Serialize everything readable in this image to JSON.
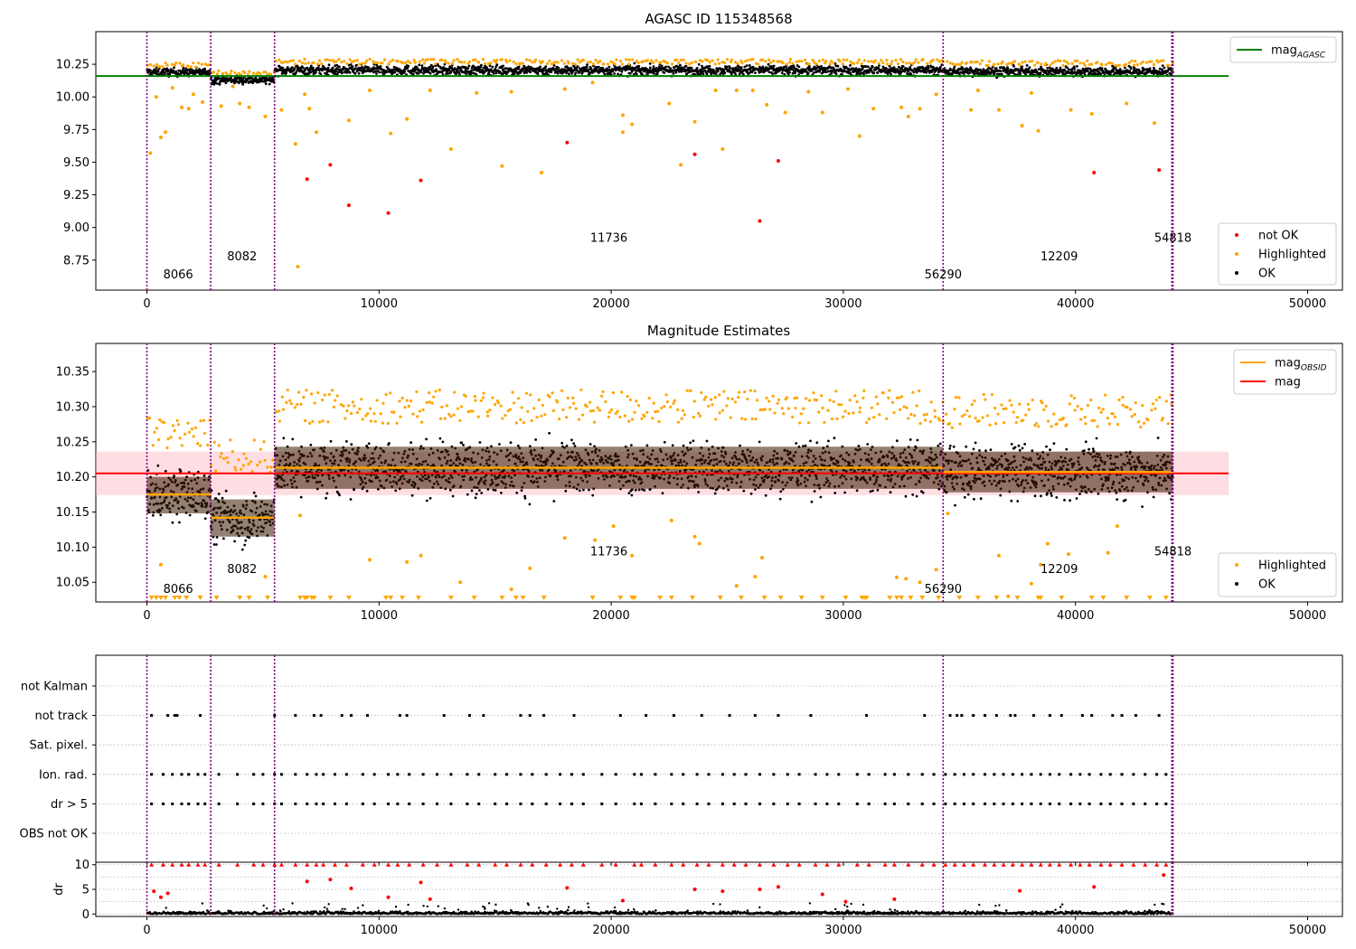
{
  "figure": {
    "title_top": "AGASC ID 115348568",
    "title_mid": "Magnitude Estimates"
  },
  "colors": {
    "ok": "#000000",
    "highlighted": "#ffa500",
    "not_ok": "#ff0000",
    "agasc_line": "#008000",
    "mag_line": "#ff0000",
    "obsid_line": "#ffa500",
    "obsid_boundary": "#800080",
    "grid": "#b0b0b0",
    "band": "#ffb6c1"
  },
  "chart_data": [
    {
      "type": "scatter",
      "title": "AGASC ID 115348568",
      "xlim": [
        -2200,
        51500
      ],
      "ylim": [
        8.52,
        10.5
      ],
      "x_ticks": [
        0,
        10000,
        20000,
        30000,
        40000,
        50000
      ],
      "y_ticks": [
        8.75,
        9.0,
        9.25,
        9.5,
        9.75,
        10.0,
        10.25
      ],
      "y_tick_labels": [
        "8.75",
        "9.00",
        "9.25",
        "9.50",
        "9.75",
        "10.00",
        "10.25"
      ],
      "mag_agasc": 10.16,
      "obsid_boundaries": [
        0,
        2750,
        5500,
        34300,
        44150,
        44200
      ],
      "obsid_labels": [
        {
          "text": "8066",
          "x": 1350,
          "y": 8.61
        },
        {
          "text": "8082",
          "x": 4100,
          "y": 8.75
        },
        {
          "text": "11736",
          "x": 19900,
          "y": 8.89
        },
        {
          "text": "56290",
          "x": 34300,
          "y": 8.61
        },
        {
          "text": "12209",
          "x": 39300,
          "y": 8.75
        },
        {
          "text": "54818",
          "x": 44200,
          "y": 8.89
        }
      ],
      "segments": [
        {
          "x0": 0,
          "x1": 2750,
          "center": 10.19,
          "spread": 0.025
        },
        {
          "x0": 2750,
          "x1": 5500,
          "center": 10.13,
          "spread": 0.025
        },
        {
          "x0": 5500,
          "x1": 34300,
          "center": 10.205,
          "spread": 0.03
        },
        {
          "x0": 34300,
          "x1": 44200,
          "center": 10.195,
          "spread": 0.03
        }
      ],
      "not_ok_points": [
        [
          6900,
          9.37
        ],
        [
          7900,
          9.48
        ],
        [
          8700,
          9.17
        ],
        [
          10400,
          9.11
        ],
        [
          11800,
          9.36
        ],
        [
          18100,
          9.65
        ],
        [
          23600,
          9.56
        ],
        [
          26400,
          9.05
        ],
        [
          27200,
          9.51
        ],
        [
          40800,
          9.42
        ],
        [
          43600,
          9.44
        ]
      ],
      "highlighted_points": [
        [
          150,
          9.57
        ],
        [
          400,
          10.0
        ],
        [
          600,
          9.69
        ],
        [
          800,
          9.73
        ],
        [
          1100,
          10.07
        ],
        [
          1500,
          9.92
        ],
        [
          1800,
          9.91
        ],
        [
          2000,
          10.02
        ],
        [
          2400,
          9.96
        ],
        [
          3200,
          9.93
        ],
        [
          3700,
          10.08
        ],
        [
          4000,
          9.95
        ],
        [
          4400,
          9.92
        ],
        [
          5100,
          9.85
        ],
        [
          5800,
          9.9
        ],
        [
          6400,
          9.64
        ],
        [
          6500,
          8.7
        ],
        [
          6800,
          10.02
        ],
        [
          7000,
          9.91
        ],
        [
          7300,
          9.73
        ],
        [
          8700,
          9.82
        ],
        [
          9600,
          10.05
        ],
        [
          10500,
          9.72
        ],
        [
          11200,
          9.83
        ],
        [
          12200,
          10.05
        ],
        [
          13100,
          9.6
        ],
        [
          14200,
          10.03
        ],
        [
          15300,
          9.47
        ],
        [
          15700,
          10.04
        ],
        [
          17000,
          9.42
        ],
        [
          18000,
          10.06
        ],
        [
          19200,
          10.11
        ],
        [
          20500,
          9.73
        ],
        [
          20500,
          9.86
        ],
        [
          20900,
          9.79
        ],
        [
          22500,
          9.95
        ],
        [
          23000,
          9.48
        ],
        [
          23600,
          9.81
        ],
        [
          24500,
          10.05
        ],
        [
          24800,
          9.6
        ],
        [
          25400,
          10.05
        ],
        [
          26100,
          10.05
        ],
        [
          26700,
          9.94
        ],
        [
          27500,
          9.88
        ],
        [
          28500,
          10.04
        ],
        [
          29100,
          9.88
        ],
        [
          30200,
          10.06
        ],
        [
          30700,
          9.7
        ],
        [
          31300,
          9.91
        ],
        [
          32500,
          9.92
        ],
        [
          32800,
          9.85
        ],
        [
          33300,
          9.91
        ],
        [
          34000,
          10.02
        ],
        [
          35500,
          9.9
        ],
        [
          35800,
          10.05
        ],
        [
          36700,
          9.9
        ],
        [
          37700,
          9.78
        ],
        [
          38100,
          10.03
        ],
        [
          38400,
          9.74
        ],
        [
          39800,
          9.9
        ],
        [
          40700,
          9.87
        ],
        [
          42200,
          9.95
        ],
        [
          43400,
          9.8
        ]
      ],
      "legend": [
        {
          "label": "mag",
          "subscript": "AGASC",
          "kind": "line",
          "color": "#008000"
        }
      ],
      "legend_lower": [
        {
          "label": "not OK",
          "kind": "dot",
          "color": "#ff0000"
        },
        {
          "label": "Highlighted",
          "kind": "dot",
          "color": "#ffa500"
        },
        {
          "label": "OK",
          "kind": "dot",
          "color": "#000000"
        }
      ],
      "grid": false
    },
    {
      "type": "scatter",
      "title": "Magnitude Estimates",
      "xlim": [
        -2200,
        51500
      ],
      "ylim": [
        10.022,
        10.39
      ],
      "x_ticks": [
        0,
        10000,
        20000,
        30000,
        40000,
        50000
      ],
      "y_ticks": [
        10.05,
        10.1,
        10.15,
        10.2,
        10.25,
        10.3,
        10.35
      ],
      "y_tick_labels": [
        "10.05",
        "10.10",
        "10.15",
        "10.20",
        "10.25",
        "10.30",
        "10.35"
      ],
      "mag": 10.205,
      "mag_band": [
        10.174,
        10.236
      ],
      "obsid_mags": [
        {
          "x0": 0,
          "x1": 2750,
          "mag": 10.175,
          "lo": 10.148,
          "hi": 10.2
        },
        {
          "x0": 2750,
          "x1": 5500,
          "mag": 10.142,
          "lo": 10.115,
          "hi": 10.168
        },
        {
          "x0": 5500,
          "x1": 34300,
          "mag": 10.213,
          "lo": 10.183,
          "hi": 10.243
        },
        {
          "x0": 34300,
          "x1": 44200,
          "mag": 10.207,
          "lo": 10.178,
          "hi": 10.236
        }
      ],
      "obsid_boundaries": [
        0,
        2750,
        5500,
        34300,
        44150,
        44200
      ],
      "obsid_labels": [
        {
          "text": "8066",
          "x": 1350,
          "y": 10.035
        },
        {
          "text": "8082",
          "x": 4100,
          "y": 10.063
        },
        {
          "text": "11736",
          "x": 19900,
          "y": 10.088
        },
        {
          "text": "56290",
          "x": 34300,
          "y": 10.035
        },
        {
          "text": "12209",
          "x": 39300,
          "y": 10.063
        },
        {
          "text": "54818",
          "x": 44200,
          "y": 10.088
        }
      ],
      "segments": [
        {
          "x0": 0,
          "x1": 2750,
          "center": 10.175,
          "spread": 0.03
        },
        {
          "x0": 2750,
          "x1": 5500,
          "center": 10.142,
          "spread": 0.03
        },
        {
          "x0": 5500,
          "x1": 34300,
          "center": 10.213,
          "spread": 0.03
        },
        {
          "x0": 34300,
          "x1": 44200,
          "center": 10.207,
          "spread": 0.03
        }
      ],
      "highlighted_points": [
        [
          600,
          10.075
        ],
        [
          5100,
          10.058
        ],
        [
          6600,
          10.145
        ],
        [
          9600,
          10.082
        ],
        [
          11200,
          10.079
        ],
        [
          11800,
          10.088
        ],
        [
          13500,
          10.05
        ],
        [
          15700,
          10.04
        ],
        [
          16500,
          10.07
        ],
        [
          18000,
          10.113
        ],
        [
          19300,
          10.11
        ],
        [
          20100,
          10.13
        ],
        [
          20900,
          10.088
        ],
        [
          22600,
          10.138
        ],
        [
          23600,
          10.115
        ],
        [
          23800,
          10.105
        ],
        [
          25400,
          10.045
        ],
        [
          26200,
          10.058
        ],
        [
          26500,
          10.085
        ],
        [
          32300,
          10.057
        ],
        [
          32700,
          10.055
        ],
        [
          33300,
          10.05
        ],
        [
          34000,
          10.068
        ],
        [
          34500,
          10.148
        ],
        [
          36700,
          10.088
        ],
        [
          37100,
          10.03
        ],
        [
          38100,
          10.048
        ],
        [
          38500,
          10.075
        ],
        [
          38800,
          10.105
        ],
        [
          39700,
          10.09
        ],
        [
          41400,
          10.092
        ],
        [
          41800,
          10.13
        ]
      ],
      "clipped_x": [
        200,
        400,
        600,
        800,
        1200,
        1400,
        1700,
        2300,
        3000,
        4000,
        4400,
        5200,
        6600,
        6800,
        6900,
        7100,
        7200,
        7900,
        8700,
        10300,
        10500,
        11000,
        11700,
        13100,
        14100,
        15300,
        15900,
        16200,
        17100,
        19200,
        20400,
        20900,
        21000,
        22100,
        22600,
        23500,
        24700,
        25600,
        26600,
        27300,
        28200,
        29100,
        30100,
        30800,
        30900,
        31000,
        32000,
        32300,
        32500,
        32900,
        33400,
        34100,
        35000,
        35800,
        36600,
        37500,
        38400,
        38500,
        39400,
        40700,
        41200,
        42200,
        43200,
        43900
      ],
      "legend": [
        {
          "label": "mag",
          "subscript": "OBSID",
          "kind": "line",
          "color": "#ffa500"
        },
        {
          "label": "mag",
          "kind": "line",
          "color": "#ff0000"
        }
      ],
      "legend_lower": [
        {
          "label": "Highlighted",
          "kind": "dot",
          "color": "#ffa500"
        },
        {
          "label": "OK",
          "kind": "dot",
          "color": "#000000"
        }
      ],
      "grid": false
    },
    {
      "type": "scatter",
      "title": "",
      "xlim": [
        -2200,
        51500
      ],
      "x_ticks": [
        0,
        10000,
        20000,
        30000,
        40000,
        50000
      ],
      "flag_rows": [
        "not Kalman",
        "not track",
        "Sat. pixel.",
        "Ion. rad.",
        "dr > 5",
        "OBS not OK"
      ],
      "flag_x": {
        "not track": [
          200,
          900,
          1300,
          1200,
          2300,
          5500,
          6400,
          7200,
          7500,
          8400,
          8800,
          9500,
          10900,
          11200,
          12800,
          13900,
          14500,
          16100,
          16500,
          17100,
          18400,
          20400,
          21500,
          22700,
          23900,
          25100,
          26200,
          27200,
          28600,
          31000,
          33500,
          34600,
          34900,
          35100,
          35600,
          36100,
          36600,
          37200,
          37400,
          38200,
          38900,
          39400,
          40300,
          40700,
          41600,
          42000,
          42600,
          43600
        ],
        "Ion. rad.": [
          200,
          700,
          1100,
          1500,
          1800,
          2200,
          2500,
          3100,
          3900,
          4600,
          5000,
          5500,
          5800,
          6400,
          6900,
          7300,
          7600,
          8100,
          8600,
          9300,
          9800,
          10400,
          10800,
          11300,
          11900,
          12500,
          13100,
          13800,
          14300,
          15000,
          15500,
          16100,
          16600,
          17200,
          17800,
          18300,
          18800,
          19600,
          20200,
          21000,
          21300,
          21900,
          22600,
          23100,
          23700,
          24200,
          24800,
          25300,
          25800,
          26400,
          27000,
          27600,
          28100,
          28800,
          29300,
          29800,
          30600,
          31100,
          31800,
          32200,
          32800,
          33400,
          33900,
          34400,
          34800,
          35200,
          35600,
          36100,
          36500,
          36900,
          37300,
          37700,
          38100,
          38500,
          38900,
          39300,
          39800,
          40200,
          40600,
          41100,
          41500,
          42000,
          42500,
          43000,
          43500,
          43900
        ],
        "dr > 5": [
          200,
          700,
          1100,
          1500,
          1800,
          2200,
          2500,
          3100,
          3900,
          4600,
          5000,
          5500,
          5800,
          6400,
          6900,
          7300,
          7600,
          8100,
          8600,
          9300,
          9800,
          10400,
          10800,
          11300,
          11900,
          12500,
          13100,
          13800,
          14300,
          15000,
          15500,
          16100,
          16600,
          17200,
          17800,
          18300,
          18800,
          19600,
          20200,
          21000,
          21300,
          21900,
          22600,
          23100,
          23700,
          24200,
          24800,
          25300,
          25800,
          26400,
          27000,
          27600,
          28100,
          28800,
          29300,
          29800,
          30600,
          31100,
          31800,
          32200,
          32800,
          33400,
          33900,
          34400,
          34800,
          35200,
          35600,
          36100,
          36500,
          36900,
          37300,
          37700,
          38100,
          38500,
          38900,
          39300,
          39800,
          40200,
          40600,
          41100,
          41500,
          42000,
          42500,
          43000,
          43500,
          43900
        ]
      },
      "obsid_boundaries": [
        0,
        2750,
        5500,
        34300,
        44150,
        44200
      ],
      "grid": true
    },
    {
      "type": "scatter",
      "title": "",
      "ylabel": "dr",
      "xlim": [
        -2200,
        51500
      ],
      "ylim": [
        -0.5,
        10.5
      ],
      "x_ticks": [
        0,
        10000,
        20000,
        30000,
        40000,
        50000
      ],
      "x_tick_labels": [
        "0",
        "10000",
        "20000",
        "30000",
        "40000",
        "50000"
      ],
      "y_ticks": [
        0,
        5,
        10
      ],
      "y_tick_labels": [
        "0",
        "5",
        "10"
      ],
      "capped_x": [
        200,
        700,
        1100,
        1500,
        1800,
        2200,
        2500,
        3100,
        3900,
        4600,
        5000,
        5500,
        5800,
        6400,
        6900,
        7300,
        7600,
        8100,
        8600,
        9300,
        9800,
        10400,
        10800,
        11300,
        11900,
        12500,
        13100,
        13800,
        14300,
        15000,
        15500,
        16100,
        16600,
        17200,
        17800,
        18300,
        18800,
        19600,
        20200,
        21000,
        21300,
        21900,
        22600,
        23100,
        23700,
        24200,
        24800,
        25300,
        25800,
        26400,
        27000,
        27600,
        28100,
        28800,
        29300,
        29800,
        30600,
        31100,
        31800,
        32200,
        32800,
        33400,
        33900,
        34400,
        34800,
        35200,
        35600,
        36100,
        36500,
        36900,
        37300,
        37700,
        38100,
        38500,
        38900,
        39300,
        39800,
        40200,
        40600,
        41100,
        41500,
        42000,
        42500,
        43000,
        43500,
        43900
      ],
      "outliers": [
        [
          300,
          4.6
        ],
        [
          600,
          3.4
        ],
        [
          900,
          4.2
        ],
        [
          6900,
          6.6
        ],
        [
          7900,
          7.0
        ],
        [
          8800,
          5.2
        ],
        [
          10400,
          3.4
        ],
        [
          11800,
          6.4
        ],
        [
          12200,
          3.0
        ],
        [
          18100,
          5.3
        ],
        [
          20500,
          2.7
        ],
        [
          23600,
          5.0
        ],
        [
          24800,
          4.6
        ],
        [
          26400,
          5.0
        ],
        [
          27200,
          5.5
        ],
        [
          29100,
          4.0
        ],
        [
          30100,
          2.5
        ],
        [
          32200,
          3.0
        ],
        [
          37600,
          4.7
        ],
        [
          40800,
          5.5
        ],
        [
          43800,
          7.9
        ]
      ],
      "obsid_boundaries": [
        0,
        2750,
        5500,
        34300,
        44150,
        44200
      ],
      "grid": true
    }
  ]
}
